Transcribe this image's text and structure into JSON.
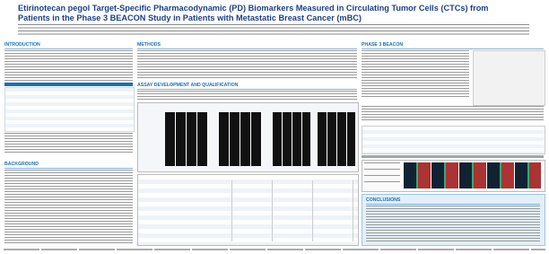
{
  "header": {
    "title": "Etirinotecan pegol Target-Specific Pharmacodynamic (PD) Biomarkers Measured in Circulating Tumor Cells (CTCs) from Patients in the Phase 3 BEACON Study in Patients with Metastatic Breast Cancer (mBC)"
  },
  "sections": {
    "introduction": "INTRODUCTION",
    "background": "BACKGROUND",
    "methods": "METHODS",
    "assay": "ASSAY DEVELOPMENT AND QUALIFICATION",
    "beacon": "PHASE 3 BEACON",
    "conclusions": "CONCLUSIONS"
  }
}
